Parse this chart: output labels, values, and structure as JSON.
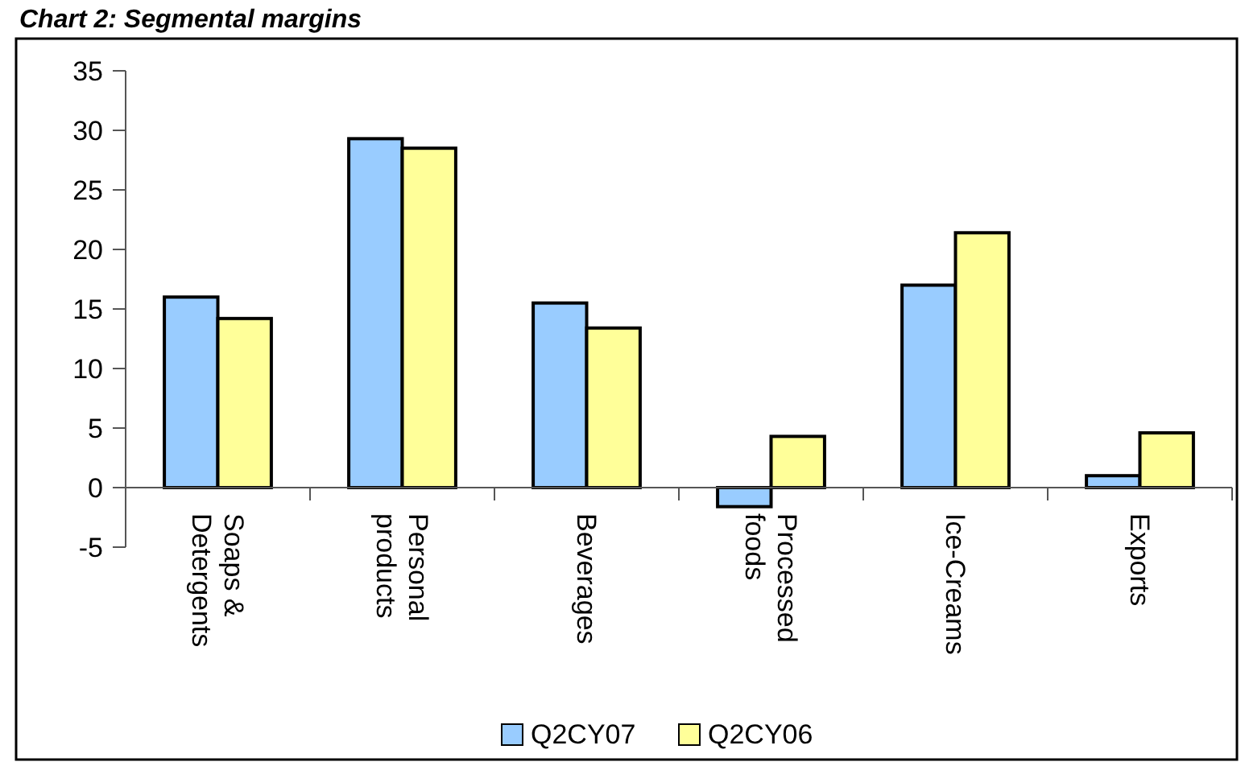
{
  "chart_data": {
    "type": "bar",
    "title": "Chart 2: Segmental margins",
    "categories": [
      "Soaps & Detergents",
      "Personal products",
      "Beverages",
      "Processed foods",
      "Ice-Creams",
      "Exports"
    ],
    "series": [
      {
        "name": "Q2CY07",
        "color": "#99ccff",
        "values": [
          16.0,
          29.3,
          15.5,
          -1.6,
          17.0,
          1.0
        ]
      },
      {
        "name": "Q2CY06",
        "color": "#ffff99",
        "values": [
          14.2,
          28.5,
          13.4,
          4.3,
          21.4,
          4.6
        ]
      }
    ],
    "ylim": [
      -5,
      35
    ],
    "yticks": [
      -5,
      0,
      5,
      10,
      15,
      20,
      25,
      30,
      35
    ],
    "grid": false,
    "legend": "bottom"
  }
}
